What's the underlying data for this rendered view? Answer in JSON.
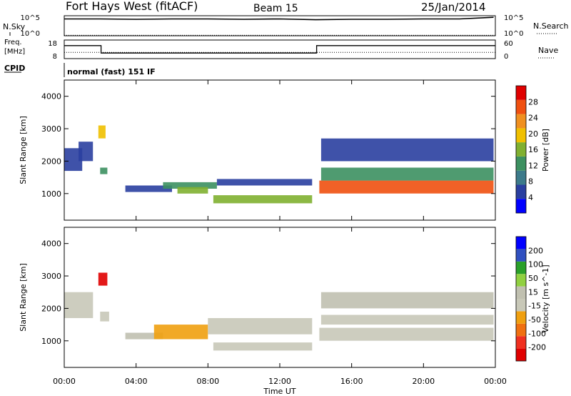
{
  "header": {
    "station": "Fort Hays West (fitACF)",
    "beam": "Beam 15",
    "date": "25/Jan/2014"
  },
  "left_labels": {
    "nsky": "N.Sky",
    "freq": "Freq.",
    "freq_unit": "[MHz]",
    "cpid": "CPID"
  },
  "right_labels": {
    "nsearch": "N.Search",
    "nave": "Nave"
  },
  "cpid_text": "normal (fast) 151 IF",
  "colors": {
    "background": "#ffffff",
    "power_scale": [
      "#0000ff",
      "#2a3fa0",
      "#3c7a8a",
      "#3c9060",
      "#80b030",
      "#f0c000",
      "#f09020",
      "#f05010",
      "#e00000"
    ],
    "velocity_scale": [
      "#0000ff",
      "#3050c0",
      "#2aa02a",
      "#90d040",
      "#c0c0b0",
      "#c8c8b8",
      "#f0a010",
      "#f07010",
      "#f03020",
      "#e00000"
    ]
  },
  "chart_data": [
    {
      "type": "line",
      "panel": "noise",
      "ytick_labels_left": [
        "10^5",
        "10^0"
      ],
      "ytick_labels_right": [
        "10^5",
        "10^0"
      ],
      "series": [
        {
          "name": "N.Sky",
          "x_hours": [
            0,
            2,
            4,
            6,
            8,
            10,
            12,
            14,
            16,
            18,
            20,
            22,
            23.9
          ],
          "log_values": [
            4.2,
            4.2,
            4.1,
            4.2,
            4.2,
            4.1,
            4.2,
            4.0,
            4.1,
            4.1,
            4.2,
            4.2,
            4.6
          ]
        },
        {
          "name": "N.Search",
          "x_hours": [
            0,
            4,
            8,
            12,
            16,
            20,
            24
          ],
          "log_values": [
            0.1,
            0.1,
            0.1,
            0.1,
            0.1,
            0.1,
            0.1
          ]
        }
      ]
    },
    {
      "type": "line",
      "panel": "frequency-nave",
      "ytick_labels_left": [
        "18",
        "8"
      ],
      "ytick_labels_right": [
        "60",
        "0"
      ],
      "series": [
        {
          "name": "Freq.",
          "x_hours": [
            0,
            2.05,
            2.05,
            14.05,
            14.05,
            24
          ],
          "values": [
            15,
            15,
            11,
            11,
            15,
            15
          ]
        },
        {
          "name": "Nave",
          "x_hours": [
            0,
            24
          ],
          "values": [
            20,
            20
          ]
        }
      ]
    },
    {
      "type": "heatmap",
      "panel": "power",
      "x_range_hours": [
        0,
        24
      ],
      "ylabel": "Slant Range [km]",
      "ylim": [
        180,
        4500
      ],
      "yticks": [
        "1000",
        "2000",
        "3000",
        "4000"
      ],
      "colorbar": {
        "label": "Power [dB]",
        "ticks": [
          "4",
          "8",
          "12",
          "16",
          "20",
          "24",
          "28"
        ],
        "range": [
          0,
          30
        ]
      },
      "regions": [
        {
          "x": [
            0,
            1.0
          ],
          "y": [
            1700,
            2400
          ],
          "value": 4
        },
        {
          "x": [
            0.8,
            1.6
          ],
          "y": [
            2000,
            2600
          ],
          "value": 6
        },
        {
          "x": [
            1.9,
            2.3
          ],
          "y": [
            2700,
            3100
          ],
          "value": 18
        },
        {
          "x": [
            2.0,
            2.4
          ],
          "y": [
            1600,
            1800
          ],
          "value": 10
        },
        {
          "x": [
            3.4,
            6.0
          ],
          "y": [
            1050,
            1250
          ],
          "value": 6
        },
        {
          "x": [
            5.5,
            8.5
          ],
          "y": [
            1150,
            1350
          ],
          "value": 10
        },
        {
          "x": [
            8.5,
            13.8
          ],
          "y": [
            1250,
            1450
          ],
          "value": 6
        },
        {
          "x": [
            6.3,
            8.0
          ],
          "y": [
            1000,
            1200
          ],
          "value": 16
        },
        {
          "x": [
            8.3,
            13.8
          ],
          "y": [
            700,
            950
          ],
          "value": 16
        },
        {
          "x": [
            14.2,
            23.9
          ],
          "y": [
            1000,
            1400
          ],
          "value": 24
        },
        {
          "x": [
            14.3,
            23.9
          ],
          "y": [
            1400,
            1800
          ],
          "value": 12
        },
        {
          "x": [
            14.3,
            23.9
          ],
          "y": [
            2000,
            2700
          ],
          "value": 5
        }
      ]
    },
    {
      "type": "heatmap",
      "panel": "velocity",
      "x_range_hours": [
        0,
        24
      ],
      "xlabel": "Time UT",
      "xtick_labels": [
        "00:00",
        "04:00",
        "08:00",
        "12:00",
        "16:00",
        "20:00",
        "00:00"
      ],
      "ylabel": "Slant Range [km]",
      "ylim": [
        180,
        4500
      ],
      "yticks": [
        "1000",
        "2000",
        "3000",
        "4000"
      ],
      "colorbar": {
        "label": "Velocity [m s^-1]",
        "ticks": [
          "200",
          "100",
          "50",
          "15",
          "-15",
          "-50",
          "-100",
          "-200"
        ],
        "range": [
          -250,
          250
        ]
      },
      "regions": [
        {
          "x": [
            0,
            1.6
          ],
          "y": [
            1700,
            2500
          ],
          "value": 0
        },
        {
          "x": [
            1.9,
            2.4
          ],
          "y": [
            2700,
            3100
          ],
          "value": -230
        },
        {
          "x": [
            2.0,
            2.5
          ],
          "y": [
            1600,
            1900
          ],
          "value": 0
        },
        {
          "x": [
            3.4,
            5.5
          ],
          "y": [
            1050,
            1250
          ],
          "value": 5
        },
        {
          "x": [
            5.0,
            8.0
          ],
          "y": [
            1050,
            1500
          ],
          "value": -60
        },
        {
          "x": [
            8.0,
            13.8
          ],
          "y": [
            1200,
            1700
          ],
          "value": 0
        },
        {
          "x": [
            8.3,
            13.8
          ],
          "y": [
            700,
            950
          ],
          "value": 0
        },
        {
          "x": [
            14.2,
            23.9
          ],
          "y": [
            1000,
            1400
          ],
          "value": 0
        },
        {
          "x": [
            14.3,
            23.9
          ],
          "y": [
            1500,
            1800
          ],
          "value": 0
        },
        {
          "x": [
            14.3,
            23.9
          ],
          "y": [
            2000,
            2500
          ],
          "value": 2
        }
      ]
    }
  ]
}
